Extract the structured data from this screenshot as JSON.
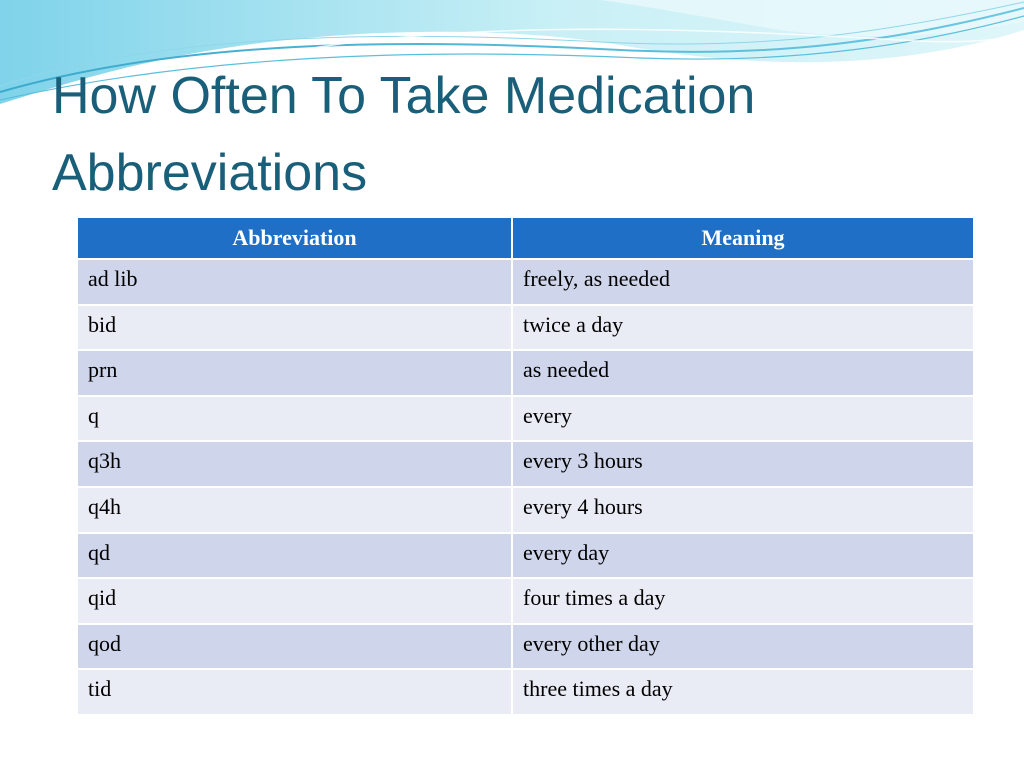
{
  "slide": {
    "title_line1": "How Often To Take Medication",
    "title_line2": "Abbreviations"
  },
  "table": {
    "headers": [
      "Abbreviation",
      "Meaning"
    ],
    "rows": [
      [
        "ad lib",
        "freely, as needed"
      ],
      [
        "bid",
        "twice a day"
      ],
      [
        "prn",
        "as needed"
      ],
      [
        "q",
        "every"
      ],
      [
        "q3h",
        "every 3 hours"
      ],
      [
        "q4h",
        "every 4 hours"
      ],
      [
        "qd",
        "every day"
      ],
      [
        "qid",
        "four times a day"
      ],
      [
        "qod",
        "every other day"
      ],
      [
        "tid",
        "three times a day"
      ]
    ]
  },
  "colors": {
    "title": "#1a5f7a",
    "header_bg": "#1f6fc6",
    "row_odd_bg": "#cfd5ea",
    "row_even_bg": "#e9ebf5",
    "wave_light": "#aee6f0",
    "wave_dark": "#3aa9cc"
  }
}
